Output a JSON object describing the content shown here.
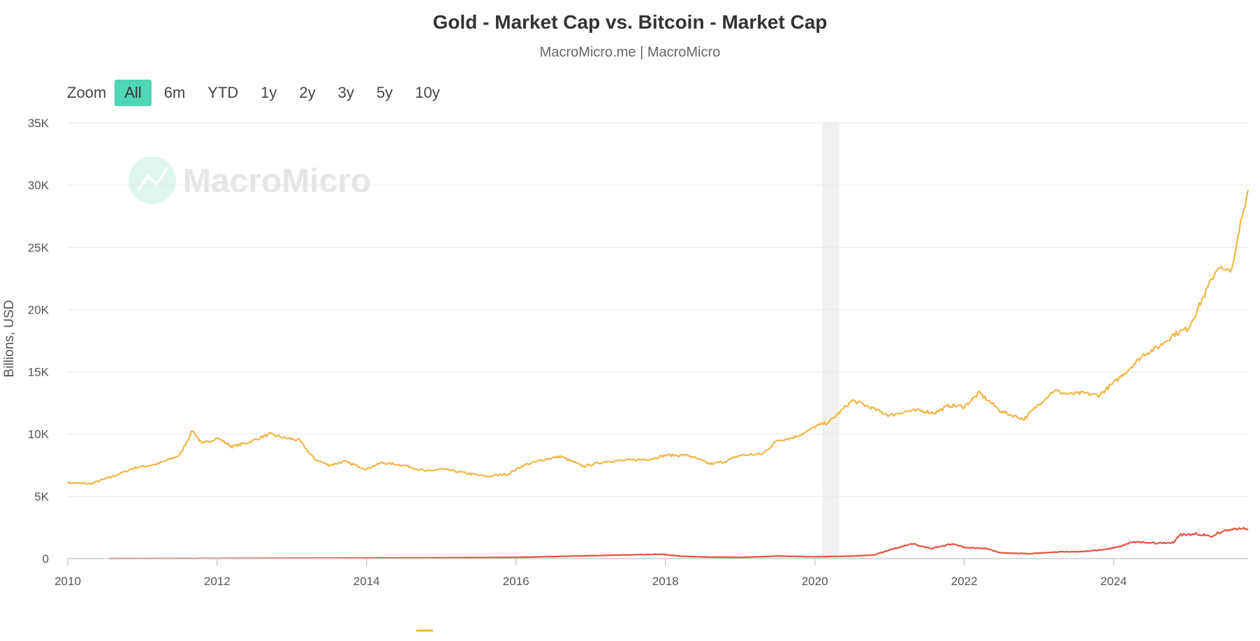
{
  "header": {
    "title": "Gold - Market Cap vs. Bitcoin - Market Cap",
    "subtitle": "MacroMicro.me | MacroMicro"
  },
  "zoom": {
    "label": "Zoom",
    "options": [
      "All",
      "6m",
      "YTD",
      "1y",
      "2y",
      "3y",
      "5y",
      "10y"
    ],
    "selected": "All"
  },
  "watermark": {
    "text": "MacroMicro"
  },
  "colors": {
    "gold": "#f2b544",
    "bitcoin": "#e0523f",
    "shade": "#f0f0f0",
    "accent": "#4fd6b4"
  },
  "chart_data": {
    "type": "line",
    "ylabel": "Billions, USD",
    "xlim": [
      2010,
      2025.8
    ],
    "ylim": [
      0,
      35000
    ],
    "x_ticks": [
      "2010",
      "2012",
      "2014",
      "2016",
      "2018",
      "2020",
      "2022",
      "2024"
    ],
    "y_ticks": [
      "0",
      "5K",
      "10K",
      "15K",
      "20K",
      "25K",
      "30K",
      "35K"
    ],
    "grid": true,
    "shaded_band": [
      2020.1,
      2020.33
    ],
    "series": [
      {
        "key": "gold",
        "x": [
          2010.0,
          2010.3,
          2010.6,
          2010.9,
          2011.2,
          2011.5,
          2011.67,
          2011.8,
          2012.0,
          2012.2,
          2012.4,
          2012.7,
          2012.9,
          2013.1,
          2013.3,
          2013.5,
          2013.7,
          2014.0,
          2014.2,
          2014.5,
          2014.8,
          2015.0,
          2015.3,
          2015.6,
          2015.9,
          2016.1,
          2016.4,
          2016.6,
          2016.9,
          2017.2,
          2017.5,
          2017.8,
          2018.0,
          2018.3,
          2018.6,
          2018.8,
          2019.0,
          2019.3,
          2019.5,
          2019.7,
          2019.9,
          2020.0,
          2020.2,
          2020.5,
          2020.6,
          2020.8,
          2021.0,
          2021.2,
          2021.4,
          2021.6,
          2021.8,
          2022.0,
          2022.2,
          2022.5,
          2022.8,
          2023.0,
          2023.2,
          2023.4,
          2023.6,
          2023.8,
          2024.0,
          2024.2,
          2024.4,
          2024.6,
          2024.8,
          2025.0,
          2025.2,
          2025.4,
          2025.5,
          2025.6,
          2025.7,
          2025.8
        ],
        "values": [
          6100,
          6000,
          6600,
          7300,
          7600,
          8300,
          10300,
          9200,
          9700,
          9000,
          9300,
          10000,
          9700,
          9500,
          8000,
          7500,
          7800,
          7200,
          7700,
          7500,
          7000,
          7200,
          6900,
          6600,
          6800,
          7500,
          8000,
          8200,
          7400,
          7800,
          7900,
          8000,
          8300,
          8300,
          7600,
          7800,
          8300,
          8400,
          9500,
          9700,
          10200,
          10600,
          11000,
          12700,
          12500,
          12000,
          11500,
          11800,
          11900,
          11700,
          12300,
          12200,
          13300,
          11800,
          11200,
          12400,
          13500,
          13200,
          13300,
          13100,
          14100,
          15200,
          16400,
          17000,
          18000,
          18500,
          21000,
          23500,
          23000,
          23500,
          27000,
          29600
        ]
      },
      {
        "key": "bitcoin",
        "x": [
          2010.55,
          2012.0,
          2014.0,
          2016.0,
          2017.5,
          2017.95,
          2018.2,
          2018.6,
          2019.0,
          2019.5,
          2020.0,
          2020.5,
          2020.8,
          2021.0,
          2021.3,
          2021.55,
          2021.85,
          2022.0,
          2022.3,
          2022.5,
          2022.9,
          2023.3,
          2023.6,
          2023.9,
          2024.1,
          2024.25,
          2024.5,
          2024.8,
          2024.9,
          2025.1,
          2025.3,
          2025.5,
          2025.7,
          2025.8
        ],
        "values": [
          5,
          20,
          50,
          100,
          300,
          350,
          200,
          120,
          100,
          200,
          150,
          200,
          300,
          700,
          1200,
          800,
          1200,
          900,
          800,
          450,
          400,
          550,
          560,
          750,
          1000,
          1350,
          1250,
          1300,
          1900,
          2000,
          1800,
          2300,
          2400,
          2300
        ]
      }
    ]
  }
}
